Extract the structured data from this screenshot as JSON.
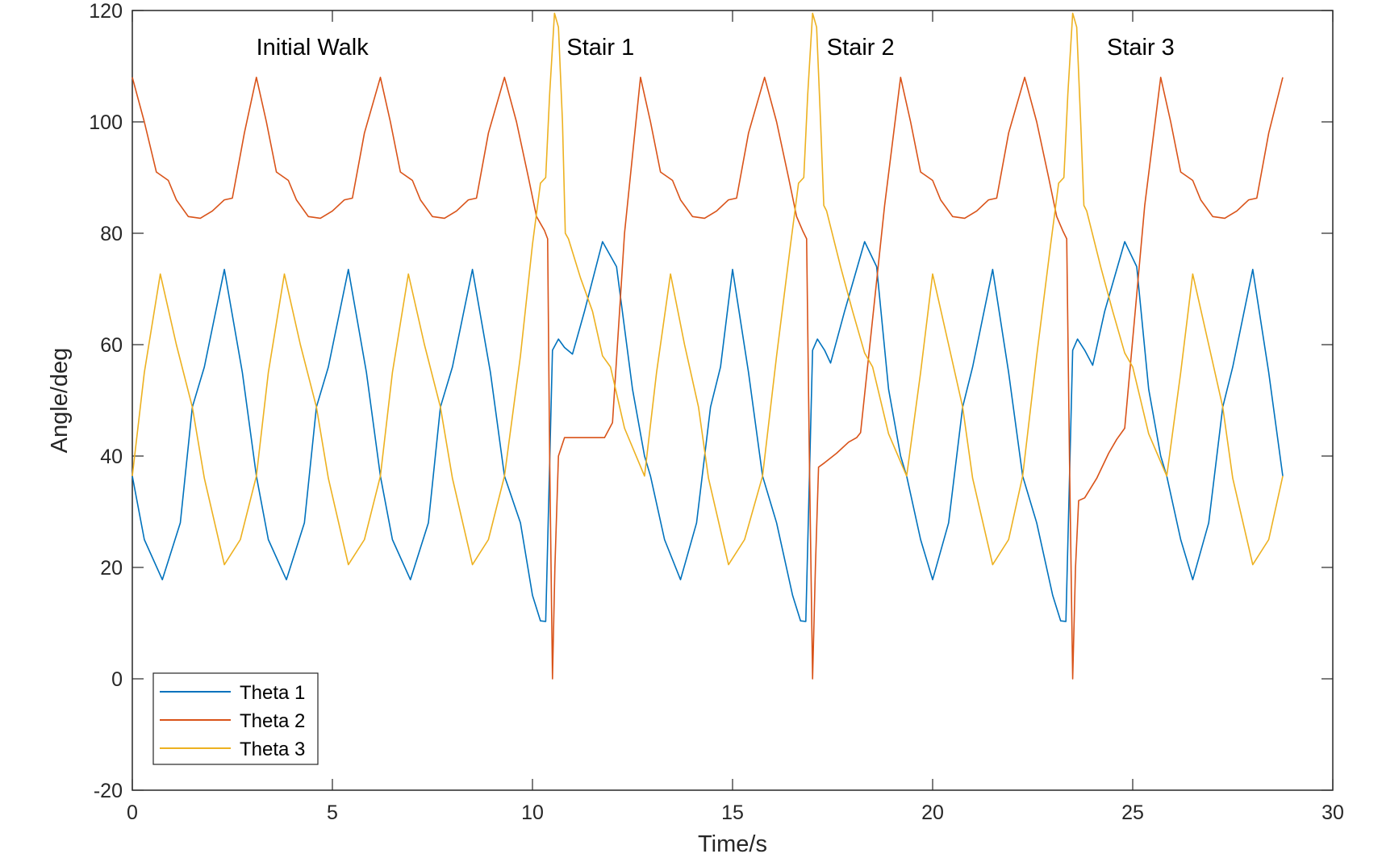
{
  "chart_data": {
    "type": "line",
    "title": "",
    "xlabel": "Time/s",
    "ylabel": "Angle/deg",
    "xlim": [
      0,
      30
    ],
    "ylim": [
      -20,
      120
    ],
    "xticks": [
      0,
      5,
      10,
      15,
      20,
      25,
      30
    ],
    "yticks": [
      -20,
      0,
      20,
      40,
      60,
      80,
      100,
      120
    ],
    "grid": false,
    "legend_position": "bottom-left",
    "annotations": [
      {
        "text": "Initial Walk",
        "x": 4.5,
        "y": 112
      },
      {
        "text": "Stair 1",
        "x": 11.7,
        "y": 112
      },
      {
        "text": "Stair 2",
        "x": 18.2,
        "y": 112
      },
      {
        "text": "Stair 3",
        "x": 25.2,
        "y": 112
      }
    ],
    "series": [
      {
        "name": "Theta 1",
        "color": "#0072BD",
        "points": [
          [
            0,
            36.4
          ],
          [
            0.3,
            25
          ],
          [
            0.75,
            17.8
          ],
          [
            1.2,
            28
          ],
          [
            1.5,
            48.8
          ],
          [
            1.8,
            56
          ],
          [
            2.3,
            73.5
          ],
          [
            2.75,
            55
          ],
          [
            3.1,
            36.4
          ],
          [
            3.4,
            25
          ],
          [
            3.85,
            17.8
          ],
          [
            4.3,
            28
          ],
          [
            4.6,
            48.8
          ],
          [
            4.9,
            56
          ],
          [
            5.4,
            73.5
          ],
          [
            5.85,
            55
          ],
          [
            6.2,
            36.4
          ],
          [
            6.5,
            25
          ],
          [
            6.95,
            17.8
          ],
          [
            7.4,
            28
          ],
          [
            7.7,
            48.8
          ],
          [
            8.0,
            56
          ],
          [
            8.5,
            73.5
          ],
          [
            8.95,
            55
          ],
          [
            9.3,
            36.4
          ],
          [
            9.7,
            28
          ],
          [
            10.0,
            15
          ],
          [
            10.2,
            10.4
          ],
          [
            10.33,
            10.3
          ],
          [
            10.4,
            30
          ],
          [
            10.5,
            59
          ],
          [
            10.65,
            61
          ],
          [
            10.8,
            59.5
          ],
          [
            11.0,
            58.3
          ],
          [
            11.3,
            66
          ],
          [
            11.75,
            78.5
          ],
          [
            12.1,
            74
          ],
          [
            12.5,
            52
          ],
          [
            12.8,
            40
          ],
          [
            12.95,
            36.4
          ],
          [
            13.3,
            25
          ],
          [
            13.7,
            17.8
          ],
          [
            14.1,
            28
          ],
          [
            14.45,
            48.8
          ],
          [
            14.7,
            56
          ],
          [
            15.0,
            73.5
          ],
          [
            15.4,
            55
          ],
          [
            15.75,
            36.4
          ],
          [
            16.1,
            28
          ],
          [
            16.5,
            15
          ],
          [
            16.7,
            10.4
          ],
          [
            16.83,
            10.3
          ],
          [
            16.9,
            30
          ],
          [
            17.0,
            59
          ],
          [
            17.12,
            61
          ],
          [
            17.3,
            59
          ],
          [
            17.45,
            56.7
          ],
          [
            17.8,
            66
          ],
          [
            18.3,
            78.5
          ],
          [
            18.6,
            74
          ],
          [
            18.9,
            52
          ],
          [
            19.2,
            40
          ],
          [
            19.35,
            36.4
          ],
          [
            19.7,
            25
          ],
          [
            20.0,
            17.8
          ],
          [
            20.4,
            28
          ],
          [
            20.75,
            48.8
          ],
          [
            21.0,
            56
          ],
          [
            21.5,
            73.5
          ],
          [
            21.9,
            55
          ],
          [
            22.25,
            36.4
          ],
          [
            22.6,
            28
          ],
          [
            23.0,
            15
          ],
          [
            23.2,
            10.4
          ],
          [
            23.33,
            10.3
          ],
          [
            23.4,
            30
          ],
          [
            23.5,
            59
          ],
          [
            23.62,
            61
          ],
          [
            23.8,
            59
          ],
          [
            24.0,
            56.3
          ],
          [
            24.3,
            66
          ],
          [
            24.8,
            78.5
          ],
          [
            25.1,
            74
          ],
          [
            25.4,
            52
          ],
          [
            25.7,
            40
          ],
          [
            25.85,
            36.4
          ],
          [
            26.2,
            25
          ],
          [
            26.5,
            17.8
          ],
          [
            26.9,
            28
          ],
          [
            27.25,
            48.8
          ],
          [
            27.5,
            56
          ],
          [
            28.0,
            73.5
          ],
          [
            28.4,
            55
          ],
          [
            28.75,
            36.4
          ]
        ]
      },
      {
        "name": "Theta 2",
        "color": "#D95319",
        "points": [
          [
            0,
            108
          ],
          [
            0.3,
            100
          ],
          [
            0.6,
            91
          ],
          [
            0.9,
            89.5
          ],
          [
            1.1,
            86
          ],
          [
            1.4,
            83
          ],
          [
            1.7,
            82.7
          ],
          [
            2.0,
            84
          ],
          [
            2.3,
            86
          ],
          [
            2.5,
            86.3
          ],
          [
            2.8,
            98
          ],
          [
            3.1,
            108
          ],
          [
            3.35,
            100
          ],
          [
            3.6,
            91
          ],
          [
            3.9,
            89.5
          ],
          [
            4.1,
            86
          ],
          [
            4.4,
            83
          ],
          [
            4.7,
            82.7
          ],
          [
            5.0,
            84
          ],
          [
            5.3,
            86
          ],
          [
            5.5,
            86.3
          ],
          [
            5.8,
            98
          ],
          [
            6.2,
            108
          ],
          [
            6.45,
            100
          ],
          [
            6.7,
            91
          ],
          [
            7.0,
            89.5
          ],
          [
            7.2,
            86
          ],
          [
            7.5,
            83
          ],
          [
            7.8,
            82.7
          ],
          [
            8.1,
            84
          ],
          [
            8.4,
            86
          ],
          [
            8.6,
            86.3
          ],
          [
            8.9,
            98
          ],
          [
            9.3,
            108
          ],
          [
            9.6,
            100
          ],
          [
            9.9,
            90
          ],
          [
            10.1,
            83
          ],
          [
            10.3,
            80.5
          ],
          [
            10.38,
            79
          ],
          [
            10.43,
            40
          ],
          [
            10.5,
            0
          ],
          [
            10.56,
            20
          ],
          [
            10.65,
            40
          ],
          [
            10.8,
            43.3
          ],
          [
            11.0,
            43.3
          ],
          [
            11.5,
            43.3
          ],
          [
            11.8,
            43.3
          ],
          [
            12.0,
            46
          ],
          [
            12.3,
            80
          ],
          [
            12.7,
            108
          ],
          [
            12.95,
            100
          ],
          [
            13.2,
            91
          ],
          [
            13.5,
            89.5
          ],
          [
            13.7,
            86
          ],
          [
            14.0,
            83
          ],
          [
            14.3,
            82.7
          ],
          [
            14.6,
            84
          ],
          [
            14.9,
            86
          ],
          [
            15.1,
            86.3
          ],
          [
            15.4,
            98
          ],
          [
            15.8,
            108
          ],
          [
            16.1,
            100
          ],
          [
            16.4,
            90
          ],
          [
            16.6,
            83
          ],
          [
            16.75,
            80.5
          ],
          [
            16.85,
            79
          ],
          [
            16.92,
            40
          ],
          [
            17.0,
            0
          ],
          [
            17.07,
            20
          ],
          [
            17.15,
            38
          ],
          [
            17.3,
            38.8
          ],
          [
            17.6,
            40.5
          ],
          [
            17.9,
            42.5
          ],
          [
            18.1,
            43.3
          ],
          [
            18.2,
            44.2
          ],
          [
            18.8,
            85
          ],
          [
            19.2,
            108
          ],
          [
            19.45,
            100
          ],
          [
            19.7,
            91
          ],
          [
            20.0,
            89.5
          ],
          [
            20.2,
            86
          ],
          [
            20.5,
            83
          ],
          [
            20.8,
            82.7
          ],
          [
            21.1,
            84
          ],
          [
            21.4,
            86
          ],
          [
            21.6,
            86.3
          ],
          [
            21.9,
            98
          ],
          [
            22.3,
            108
          ],
          [
            22.6,
            100
          ],
          [
            22.9,
            90
          ],
          [
            23.1,
            83
          ],
          [
            23.25,
            80.5
          ],
          [
            23.35,
            79
          ],
          [
            23.42,
            40
          ],
          [
            23.5,
            0
          ],
          [
            23.57,
            20
          ],
          [
            23.65,
            32
          ],
          [
            23.8,
            32.5
          ],
          [
            24.1,
            36
          ],
          [
            24.4,
            40.5
          ],
          [
            24.6,
            43
          ],
          [
            24.8,
            45
          ],
          [
            25.3,
            85
          ],
          [
            25.7,
            108
          ],
          [
            25.95,
            100
          ],
          [
            26.2,
            91
          ],
          [
            26.5,
            89.5
          ],
          [
            26.7,
            86
          ],
          [
            27.0,
            83
          ],
          [
            27.3,
            82.7
          ],
          [
            27.6,
            84
          ],
          [
            27.9,
            86
          ],
          [
            28.1,
            86.3
          ],
          [
            28.4,
            98
          ],
          [
            28.75,
            108
          ]
        ]
      },
      {
        "name": "Theta 3",
        "color": "#EDB120",
        "points": [
          [
            0,
            36.4
          ],
          [
            0.3,
            55
          ],
          [
            0.7,
            72.7
          ],
          [
            1.1,
            60
          ],
          [
            1.5,
            48.8
          ],
          [
            1.8,
            36
          ],
          [
            2.3,
            20.5
          ],
          [
            2.7,
            25
          ],
          [
            3.1,
            36.4
          ],
          [
            3.4,
            55
          ],
          [
            3.8,
            72.7
          ],
          [
            4.2,
            60
          ],
          [
            4.6,
            48.8
          ],
          [
            4.9,
            36
          ],
          [
            5.4,
            20.5
          ],
          [
            5.8,
            25
          ],
          [
            6.2,
            36.4
          ],
          [
            6.5,
            55
          ],
          [
            6.9,
            72.7
          ],
          [
            7.3,
            60
          ],
          [
            7.7,
            48.8
          ],
          [
            8.0,
            36
          ],
          [
            8.5,
            20.5
          ],
          [
            8.9,
            25
          ],
          [
            9.3,
            36.4
          ],
          [
            9.7,
            58
          ],
          [
            10.0,
            78
          ],
          [
            10.2,
            89
          ],
          [
            10.33,
            90
          ],
          [
            10.43,
            105
          ],
          [
            10.55,
            119.5
          ],
          [
            10.65,
            117
          ],
          [
            10.75,
            100
          ],
          [
            10.82,
            80
          ],
          [
            10.9,
            79
          ],
          [
            11.2,
            72
          ],
          [
            11.5,
            66
          ],
          [
            11.75,
            58
          ],
          [
            11.95,
            56
          ],
          [
            12.3,
            45
          ],
          [
            12.8,
            36.4
          ],
          [
            13.1,
            55
          ],
          [
            13.45,
            72.7
          ],
          [
            13.8,
            60
          ],
          [
            14.15,
            48.8
          ],
          [
            14.4,
            36
          ],
          [
            14.9,
            20.5
          ],
          [
            15.3,
            25
          ],
          [
            15.75,
            36.4
          ],
          [
            16.1,
            58
          ],
          [
            16.45,
            78
          ],
          [
            16.65,
            89
          ],
          [
            16.78,
            90
          ],
          [
            16.88,
            105
          ],
          [
            17.0,
            119.5
          ],
          [
            17.1,
            117
          ],
          [
            17.2,
            100
          ],
          [
            17.28,
            85
          ],
          [
            17.35,
            84
          ],
          [
            17.7,
            74
          ],
          [
            18.0,
            66
          ],
          [
            18.3,
            58.5
          ],
          [
            18.5,
            56
          ],
          [
            18.9,
            44
          ],
          [
            19.35,
            36.4
          ],
          [
            19.7,
            55
          ],
          [
            20.0,
            72.7
          ],
          [
            20.4,
            60
          ],
          [
            20.75,
            48.8
          ],
          [
            21.0,
            36
          ],
          [
            21.5,
            20.5
          ],
          [
            21.9,
            25
          ],
          [
            22.25,
            36.4
          ],
          [
            22.6,
            58
          ],
          [
            22.95,
            78
          ],
          [
            23.15,
            89
          ],
          [
            23.28,
            90
          ],
          [
            23.38,
            105
          ],
          [
            23.5,
            119.5
          ],
          [
            23.6,
            117
          ],
          [
            23.7,
            100
          ],
          [
            23.78,
            85
          ],
          [
            23.85,
            84
          ],
          [
            24.2,
            74
          ],
          [
            24.5,
            66
          ],
          [
            24.8,
            58.5
          ],
          [
            25.0,
            56
          ],
          [
            25.4,
            44
          ],
          [
            25.85,
            36.4
          ],
          [
            26.2,
            55
          ],
          [
            26.5,
            72.7
          ],
          [
            26.9,
            60
          ],
          [
            27.25,
            48.8
          ],
          [
            27.5,
            36
          ],
          [
            28.0,
            20.5
          ],
          [
            28.4,
            25
          ],
          [
            28.75,
            36.4
          ]
        ]
      }
    ]
  }
}
